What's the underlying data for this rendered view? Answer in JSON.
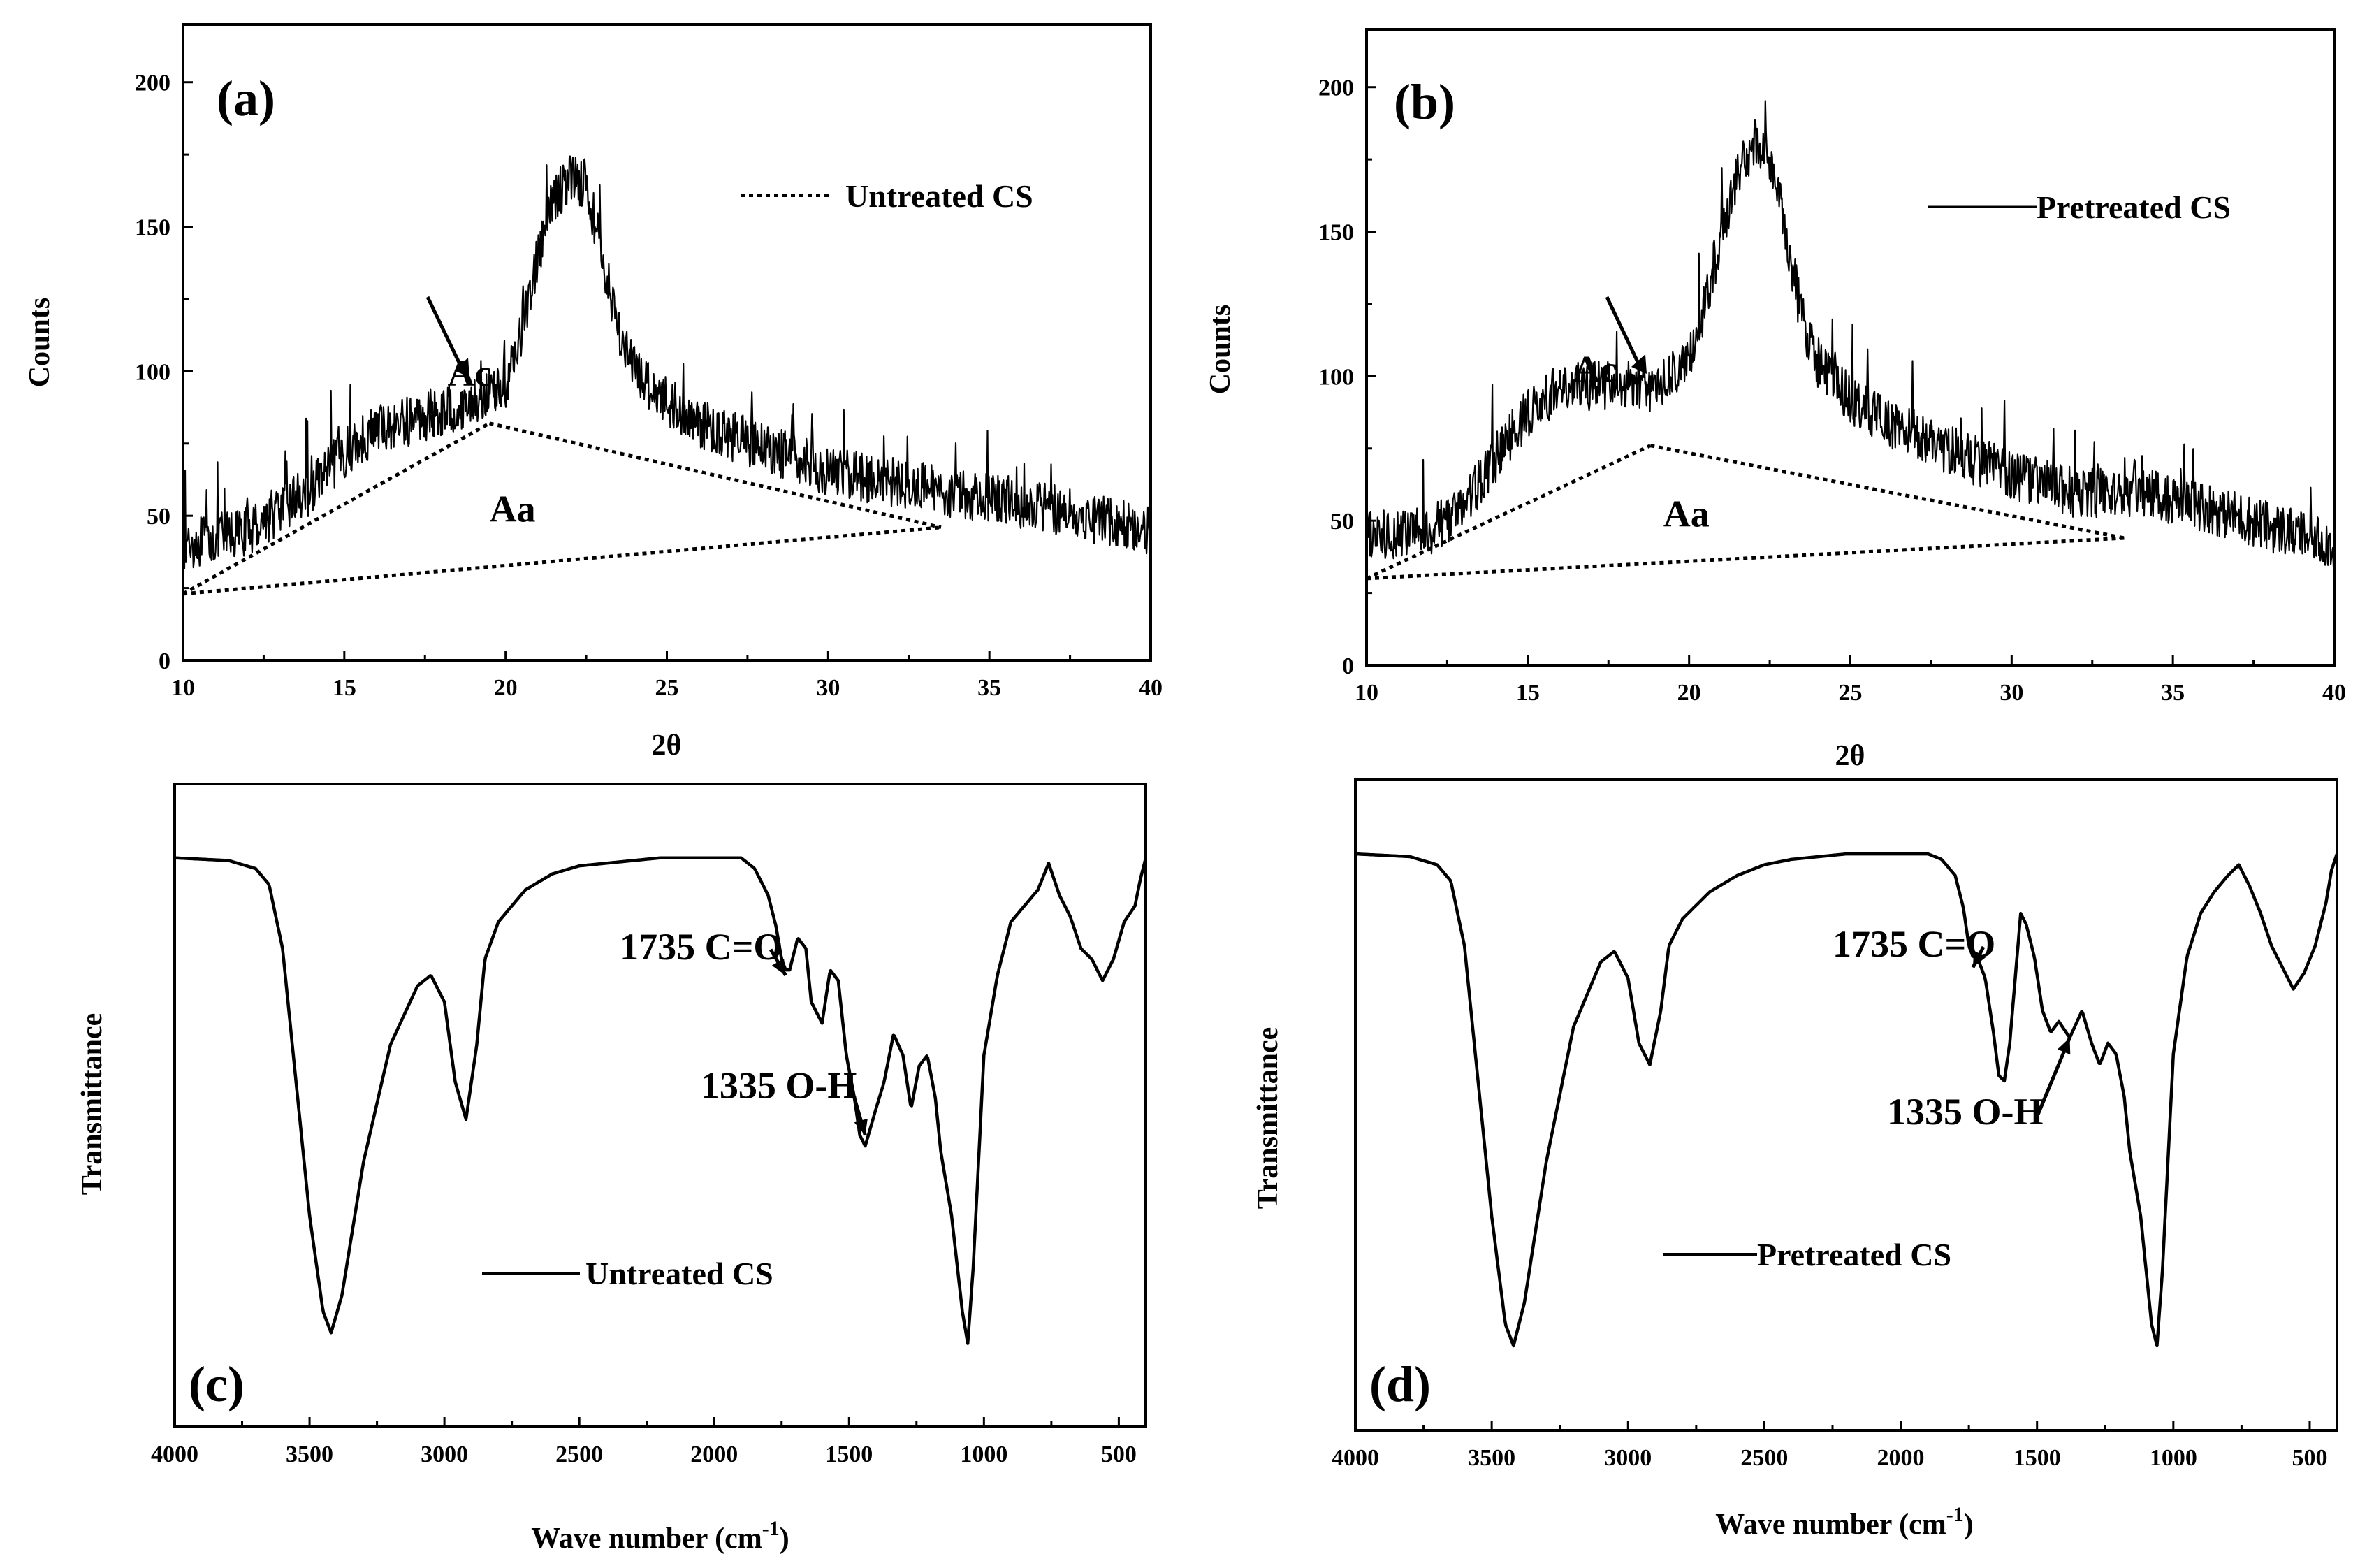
{
  "chart_data": [
    {
      "id": "a",
      "type": "line",
      "panel_label": "(a)",
      "xlabel": "2θ",
      "ylabel": "Counts",
      "xlim": [
        10,
        40
      ],
      "ylim": [
        0,
        220
      ],
      "x_ticks": [
        10,
        15,
        20,
        25,
        30,
        35,
        40
      ],
      "y_ticks": [
        0,
        50,
        100,
        150,
        200
      ],
      "legend": {
        "label": "Untreated CS",
        "style": "dotted",
        "position": "top-right"
      },
      "annotations": [
        {
          "text": "Ac",
          "x": 18.2,
          "y": 95
        },
        {
          "text": "Aa",
          "x": 19.5,
          "y": 48
        }
      ],
      "series": [
        {
          "name": "Untreated CS",
          "style": "noisy",
          "noise_amplitude": 9,
          "x": [
            10,
            12,
            14,
            15,
            16,
            18,
            19,
            20,
            20.5,
            21,
            21.5,
            22,
            22.5,
            23,
            23.5,
            24,
            25,
            26,
            27,
            28,
            30,
            32,
            34,
            36,
            38,
            40
          ],
          "y": [
            40,
            45,
            60,
            72,
            80,
            86,
            90,
            96,
            115,
            140,
            160,
            168,
            165,
            140,
            115,
            100,
            90,
            82,
            78,
            74,
            66,
            62,
            58,
            55,
            50,
            45
          ]
        }
      ],
      "dotted_baselines": [
        {
          "x": [
            10,
            19.5
          ],
          "y": [
            23,
            82
          ]
        },
        {
          "x": [
            19.5,
            33.5
          ],
          "y": [
            82,
            46
          ]
        },
        {
          "x": [
            10,
            33.5
          ],
          "y": [
            23,
            46
          ]
        }
      ]
    },
    {
      "id": "b",
      "type": "line",
      "panel_label": "(b)",
      "xlabel": "2θ",
      "ylabel": "Counts",
      "xlim": [
        10,
        40
      ],
      "ylim": [
        0,
        220
      ],
      "x_ticks": [
        10,
        15,
        20,
        25,
        30,
        35,
        40
      ],
      "y_ticks": [
        0,
        50,
        100,
        150,
        200
      ],
      "legend": {
        "label": "Pretreated CS",
        "style": "solid",
        "position": "top-right"
      },
      "annotations": [
        {
          "text": "Ac",
          "x": 16.4,
          "y": 98
        },
        {
          "text": "Aa",
          "x": 19.2,
          "y": 48
        }
      ],
      "series": [
        {
          "name": "Pretreated CS",
          "style": "noisy",
          "noise_amplitude": 9,
          "x": [
            10,
            12,
            13,
            14,
            15,
            16,
            17,
            18,
            19,
            20,
            20.5,
            21,
            21.5,
            22,
            22.5,
            23,
            23.5,
            24,
            25,
            26,
            28,
            30,
            32,
            34,
            36,
            38,
            40
          ],
          "y": [
            45,
            47,
            55,
            72,
            88,
            96,
            97,
            97,
            96,
            105,
            125,
            150,
            170,
            180,
            176,
            150,
            120,
            105,
            92,
            85,
            75,
            66,
            60,
            60,
            55,
            48,
            42
          ]
        }
      ],
      "dotted_baselines": [
        {
          "x": [
            10,
            18.8
          ],
          "y": [
            30,
            76
          ]
        },
        {
          "x": [
            18.8,
            33.5
          ],
          "y": [
            76,
            44
          ]
        },
        {
          "x": [
            10,
            33.5
          ],
          "y": [
            30,
            44
          ]
        }
      ]
    },
    {
      "id": "c",
      "type": "line",
      "panel_label": "(c)",
      "xlabel": "Wave number (cm",
      "xlabel_sup": "-1",
      "xlabel_close": ")",
      "ylabel": "Transmittance",
      "xlim": [
        4000,
        400
      ],
      "ylim": [
        0,
        100
      ],
      "x_ticks": [
        4000,
        3500,
        3000,
        2500,
        2000,
        1500,
        1000,
        500
      ],
      "y_ticks": [],
      "legend": {
        "label": "Untreated CS",
        "style": "solid",
        "position": "center"
      },
      "annotations": [
        {
          "text": "1735 C=O",
          "x": 2350,
          "y": 78,
          "arrow_to": [
            1735,
            75
          ]
        },
        {
          "text": "1335 O-H",
          "x": 2050,
          "y": 52,
          "arrow_to": [
            1440,
            45
          ]
        }
      ],
      "series": [
        {
          "name": "Untreated CS",
          "style": "smooth",
          "x": [
            4000,
            3800,
            3700,
            3650,
            3600,
            3550,
            3500,
            3450,
            3420,
            3380,
            3300,
            3200,
            3100,
            3050,
            3000,
            2960,
            2920,
            2880,
            2850,
            2800,
            2700,
            2600,
            2500,
            2400,
            2300,
            2200,
            2100,
            2000,
            1900,
            1850,
            1800,
            1770,
            1750,
            1735,
            1720,
            1690,
            1660,
            1640,
            1600,
            1570,
            1540,
            1510,
            1480,
            1460,
            1440,
            1400,
            1370,
            1335,
            1300,
            1270,
            1240,
            1210,
            1180,
            1160,
            1120,
            1080,
            1060,
            1040,
            1000,
            950,
            900,
            850,
            800,
            760,
            720,
            680,
            640,
            600,
            560,
            520,
            480,
            440,
            420,
            400
          ],
          "y": [
            97,
            96.5,
            95,
            92,
            80,
            55,
            30,
            12,
            8,
            15,
            40,
            62,
            73,
            75,
            70,
            55,
            48,
            62,
            78,
            85,
            91,
            94,
            95.5,
            96,
            96.5,
            97,
            97,
            97,
            97,
            95,
            90,
            84,
            78,
            76,
            76,
            82,
            80,
            70,
            66,
            76,
            74,
            60,
            52,
            45,
            43,
            50,
            55,
            64,
            60,
            50,
            58,
            60,
            52,
            42,
            30,
            12,
            6,
            20,
            60,
            75,
            85,
            88,
            91,
            96,
            90,
            86,
            80,
            78,
            74,
            78,
            85,
            88,
            93,
            97
          ]
        }
      ]
    },
    {
      "id": "d",
      "type": "line",
      "panel_label": "(d)",
      "xlabel": "Wave number (cm",
      "xlabel_sup": "-1",
      "xlabel_close": ")",
      "ylabel": "Transmittance",
      "xlim": [
        4000,
        400
      ],
      "ylim": [
        0,
        100
      ],
      "x_ticks": [
        4000,
        3500,
        3000,
        2500,
        2000,
        1500,
        1000,
        500
      ],
      "y_ticks": [],
      "legend": {
        "label": "Pretreated CS",
        "style": "solid",
        "position": "center"
      },
      "annotations": [
        {
          "text": "1735 C=O",
          "x": 2250,
          "y": 78,
          "arrow_to": [
            1735,
            76
          ]
        },
        {
          "text": "1335 O-H",
          "x": 2050,
          "y": 47,
          "arrow_to": [
            1380,
            63
          ]
        }
      ],
      "series": [
        {
          "name": "Pretreated CS",
          "style": "smooth",
          "x": [
            4000,
            3800,
            3700,
            3650,
            3600,
            3550,
            3500,
            3450,
            3420,
            3380,
            3300,
            3200,
            3100,
            3050,
            3000,
            2960,
            2920,
            2880,
            2850,
            2800,
            2700,
            2600,
            2500,
            2400,
            2300,
            2200,
            2100,
            2000,
            1900,
            1850,
            1800,
            1770,
            1750,
            1735,
            1720,
            1690,
            1660,
            1640,
            1620,
            1600,
            1580,
            1560,
            1540,
            1510,
            1480,
            1450,
            1420,
            1380,
            1335,
            1300,
            1270,
            1240,
            1210,
            1180,
            1160,
            1120,
            1080,
            1060,
            1040,
            1000,
            950,
            900,
            850,
            800,
            760,
            720,
            680,
            640,
            600,
            560,
            520,
            480,
            440,
            420,
            400
          ],
          "y": [
            97,
            96.5,
            95,
            92,
            80,
            55,
            30,
            10,
            6,
            14,
            40,
            65,
            77,
            79,
            74,
            62,
            58,
            68,
            80,
            85,
            90,
            93,
            95,
            96,
            96.5,
            97,
            97,
            97,
            97,
            96,
            93,
            87,
            80,
            78,
            78,
            74,
            64,
            56,
            55,
            62,
            74,
            86,
            84,
            78,
            68,
            64,
            66,
            63,
            68,
            62,
            58,
            62,
            60,
            52,
            42,
            30,
            10,
            6,
            20,
            60,
            78,
            86,
            90,
            93,
            95,
            91,
            86,
            80,
            76,
            72,
            75,
            80,
            88,
            94,
            97
          ]
        }
      ]
    }
  ]
}
